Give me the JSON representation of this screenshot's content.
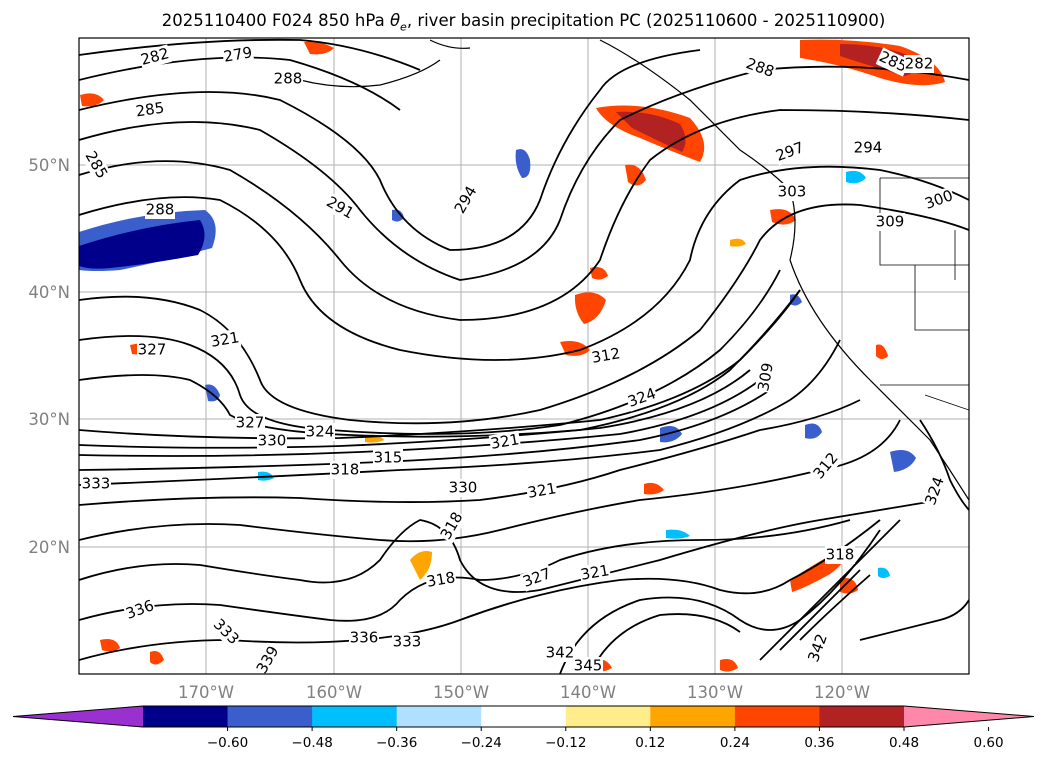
{
  "title": "2025110400 F024 850 hPa θe, river basin precipitation PC (2025110600 - 2025110900)",
  "map": {
    "lat_labels": [
      "50°N",
      "40°N",
      "30°N",
      "20°N"
    ],
    "lon_labels": [
      "170°W",
      "160°W",
      "150°W",
      "140°W",
      "130°W",
      "120°W"
    ],
    "contour_labels": [
      "282",
      "279",
      "288",
      "285",
      "285",
      "288",
      "291",
      "294",
      "297",
      "294",
      "285",
      "282",
      "288",
      "300",
      "303",
      "309",
      "321",
      "327",
      "312",
      "324",
      "327",
      "330",
      "324",
      "321",
      "315",
      "318",
      "333",
      "330",
      "321",
      "318",
      "318",
      "327",
      "321",
      "336",
      "333",
      "339",
      "336",
      "333",
      "342",
      "345",
      "309",
      "312",
      "324",
      "342",
      "318"
    ]
  },
  "colorbar": {
    "ticks": [
      "−0.60",
      "−0.48",
      "−0.36",
      "−0.24",
      "−0.12",
      "0.12",
      "0.24",
      "0.36",
      "0.48",
      "0.60"
    ],
    "colors": [
      "#9b30d0",
      "#00008b",
      "#3a5fcd",
      "#00bfff",
      "#b0e0ff",
      "#ffffff",
      "#ffec8b",
      "#ffa500",
      "#ff4500",
      "#b22222",
      "#ff88aa"
    ]
  }
}
